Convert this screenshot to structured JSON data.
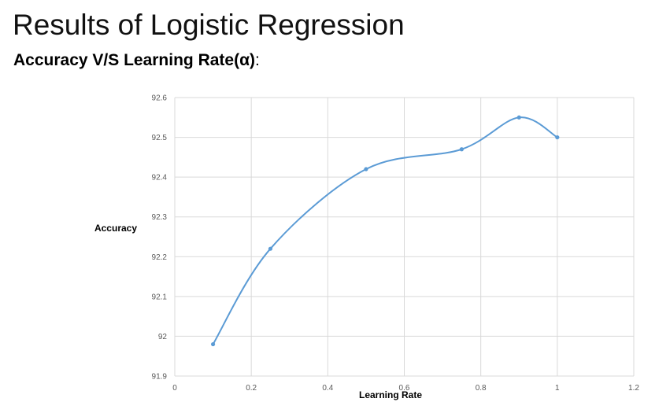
{
  "slide": {
    "title": "Results of Logistic Regression",
    "subtitle": "Accuracy V/S Learning Rate(α)",
    "subtitle_suffix": ":"
  },
  "chart_data": {
    "type": "scatter",
    "title": "",
    "xlabel": "Learning Rate",
    "ylabel": "Accuracy",
    "xlim": [
      0,
      1.2
    ],
    "ylim": [
      91.9,
      92.6
    ],
    "x_ticks": [
      0,
      0.2,
      0.4,
      0.6,
      0.8,
      1,
      1.2
    ],
    "y_ticks": [
      91.9,
      92,
      92.1,
      92.2,
      92.3,
      92.4,
      92.5,
      92.6
    ],
    "x_tick_labels": [
      "0",
      "0.2",
      "0.4",
      "0.6",
      "0.8",
      "1",
      "1.2"
    ],
    "y_tick_labels": [
      "91.9",
      "92",
      "92.1",
      "92.2",
      "92.3",
      "92.4",
      "92.5",
      "92.6"
    ],
    "grid": true,
    "smooth_line": true,
    "series": [
      {
        "x": [
          0.1,
          0.25,
          0.5,
          0.75,
          0.9,
          1.0
        ],
        "y": [
          91.98,
          92.22,
          92.42,
          92.47,
          92.55,
          92.5
        ],
        "color": "#5b9bd5"
      }
    ]
  }
}
